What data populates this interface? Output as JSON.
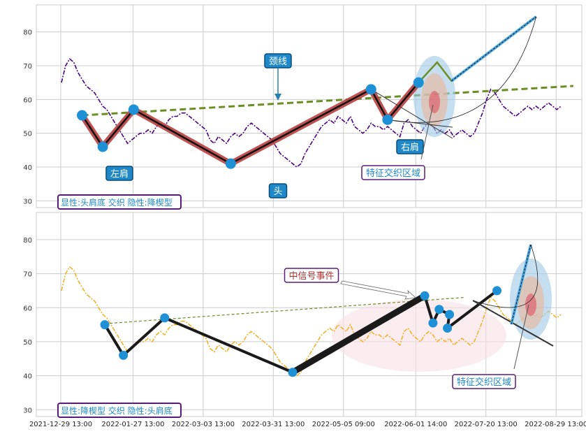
{
  "chart_data": [
    {
      "type": "line",
      "panel": "top",
      "ylim": [
        28,
        88
      ],
      "yticks": [
        30,
        40,
        50,
        60,
        70,
        80
      ],
      "grid": true,
      "series": [
        {
          "name": "",
          "style": "dash-dot",
          "color": "#4b0082",
          "x": [
            0,
            2,
            4,
            6,
            8,
            10,
            12,
            14,
            16,
            18,
            20,
            22,
            24,
            26,
            28,
            30,
            32,
            34,
            36,
            38,
            40,
            42,
            44,
            46,
            48,
            50,
            52,
            54,
            56,
            58,
            60,
            62,
            64,
            66,
            68,
            70,
            72,
            74,
            76,
            78,
            80,
            82,
            84,
            86,
            88,
            90,
            92,
            94,
            96,
            98,
            100,
            102,
            104,
            106,
            108,
            110,
            112,
            114,
            116,
            118,
            120,
            122,
            124,
            126,
            128,
            130,
            132,
            134,
            136,
            138,
            140,
            142,
            144,
            146,
            148,
            150,
            152,
            154,
            156,
            158,
            160,
            162,
            164,
            166,
            168,
            170,
            172,
            174,
            176,
            178,
            180,
            182,
            184,
            186,
            188,
            190,
            192,
            194,
            196,
            198,
            200,
            202,
            204,
            206,
            208,
            210,
            212,
            214,
            216,
            218,
            220,
            222,
            224,
            226,
            228,
            230,
            232,
            234,
            236,
            238,
            240,
            242
          ],
          "y": [
            65,
            70,
            72,
            71,
            68,
            66,
            64,
            63,
            62,
            60,
            58,
            57,
            55,
            53,
            51,
            49,
            47,
            48,
            49,
            50,
            50,
            51,
            50,
            52,
            53,
            52,
            54,
            55,
            55,
            56,
            56,
            55,
            54,
            53,
            52,
            51,
            48,
            47,
            49,
            48,
            47,
            49,
            50,
            49,
            50,
            52,
            53,
            52,
            51,
            50,
            49,
            48,
            46,
            44,
            43,
            42,
            41,
            40,
            41,
            44,
            46,
            48,
            50,
            52,
            53,
            54,
            53,
            55,
            54,
            53,
            55,
            52,
            51,
            50,
            51,
            53,
            52,
            52,
            51,
            52,
            51,
            50,
            49,
            53,
            54,
            52,
            51,
            50,
            52,
            53,
            52,
            50,
            51,
            50,
            51,
            49,
            50,
            51,
            50,
            49,
            50,
            53,
            56,
            60,
            63,
            62,
            60,
            58,
            57,
            56,
            55,
            56,
            57,
            58,
            57,
            58,
            57,
            58,
            59,
            58,
            57,
            58
          ]
        },
        {
          "name": "",
          "style": "dashed",
          "color": "#6b8e23",
          "x": [
            10,
            248
          ],
          "y": [
            55.3,
            64
          ]
        }
      ],
      "pattern_points": [
        {
          "x": 10,
          "y": 55.3
        },
        {
          "x": 20,
          "y": 46
        },
        {
          "x": 35,
          "y": 57
        },
        {
          "x": 82,
          "y": 41
        },
        {
          "x": 150,
          "y": 63
        },
        {
          "x": 158,
          "y": 54
        },
        {
          "x": 173,
          "y": 65
        }
      ],
      "projection": {
        "x": [
          173,
          182,
          189,
          230
        ],
        "y": [
          65,
          71,
          65.5,
          84.5
        ]
      },
      "annotations": {
        "neckline": "颈线",
        "left_shoulder": "左肩",
        "head": "头",
        "right_shoulder": "右肩",
        "feature_zone": "特征交织区域"
      },
      "legend_box": "显性:头肩底 交织 隐性:降楔型"
    },
    {
      "type": "line",
      "panel": "bottom",
      "ylim": [
        28,
        88
      ],
      "yticks": [
        30,
        40,
        50,
        60,
        70,
        80
      ],
      "grid": true,
      "series": [
        {
          "name": "",
          "style": "dash-dot",
          "color": "#f0b429",
          "x": [
            0,
            2,
            4,
            6,
            8,
            10,
            12,
            14,
            16,
            18,
            20,
            22,
            24,
            26,
            28,
            30,
            32,
            34,
            36,
            38,
            40,
            42,
            44,
            46,
            48,
            50,
            52,
            54,
            56,
            58,
            60,
            62,
            64,
            66,
            68,
            70,
            72,
            74,
            76,
            78,
            80,
            82,
            84,
            86,
            88,
            90,
            92,
            94,
            96,
            98,
            100,
            102,
            104,
            106,
            108,
            110,
            112,
            114,
            116,
            118,
            120,
            122,
            124,
            126,
            128,
            130,
            132,
            134,
            136,
            138,
            140,
            142,
            144,
            146,
            148,
            150,
            152,
            154,
            156,
            158,
            160,
            162,
            164,
            166,
            168,
            170,
            172,
            174,
            176,
            178,
            180,
            182,
            184,
            186,
            188,
            190,
            192,
            194,
            196,
            198,
            200,
            202,
            204,
            206,
            208,
            210,
            212,
            214,
            216,
            218,
            220,
            222,
            224,
            226,
            228,
            230,
            232,
            234,
            236,
            238,
            240,
            242
          ],
          "y": [
            65,
            70,
            72,
            71,
            68,
            66,
            64,
            63,
            62,
            60,
            58,
            57,
            55,
            53,
            51,
            49,
            47,
            48,
            49,
            50,
            50,
            51,
            50,
            52,
            53,
            52,
            54,
            55,
            55,
            56,
            56,
            55,
            54,
            53,
            52,
            51,
            48,
            47,
            49,
            48,
            47,
            49,
            50,
            49,
            50,
            52,
            53,
            52,
            51,
            50,
            49,
            48,
            46,
            44,
            43,
            42,
            41,
            40,
            41,
            44,
            46,
            48,
            50,
            52,
            53,
            54,
            53,
            55,
            54,
            53,
            55,
            52,
            51,
            50,
            51,
            53,
            52,
            52,
            51,
            52,
            51,
            50,
            49,
            53,
            54,
            52,
            51,
            50,
            52,
            53,
            52,
            50,
            51,
            50,
            51,
            49,
            50,
            51,
            50,
            49,
            50,
            53,
            56,
            60,
            63,
            62,
            60,
            58,
            57,
            56,
            55,
            56,
            57,
            58,
            57,
            58,
            57,
            58,
            59,
            58,
            57,
            58
          ]
        },
        {
          "name": "",
          "style": "dashed",
          "color": "#6b8e23",
          "x": [
            21,
            195
          ],
          "y": [
            55.3,
            63
          ]
        }
      ],
      "pattern_points": [
        {
          "x": 21,
          "y": 55
        },
        {
          "x": 30,
          "y": 46
        },
        {
          "x": 50,
          "y": 57
        },
        {
          "x": 112,
          "y": 41
        },
        {
          "x": 176,
          "y": 63.5
        },
        {
          "x": 180,
          "y": 55.5
        },
        {
          "x": 183,
          "y": 59.5
        },
        {
          "x": 188,
          "y": 58
        },
        {
          "x": 187,
          "y": 54
        },
        {
          "x": 211,
          "y": 65
        }
      ],
      "annotations": {
        "mid_signal": "中信号事件",
        "feature_zone": "特征交织区域"
      },
      "legend_box": "显性:降楔型 交织 隐性:头肩底"
    }
  ],
  "x_ticks": [
    "2021-12-29 13:00",
    "2022-01-27 13:00",
    "2022-03-03 13:00",
    "2022-03-31 13:00",
    "2022-05-05 09:00",
    "2022-06-01 14:00",
    "2022-07-20 13:00",
    "2022-08-29 13:00"
  ],
  "colors": {
    "grid": "#cccccc",
    "marker": "#1e90d6",
    "label_box": "#1e88c8",
    "legend_border": "#5a1a7a",
    "legend_text": "#1e88c8",
    "signal_text": "#b03030"
  }
}
